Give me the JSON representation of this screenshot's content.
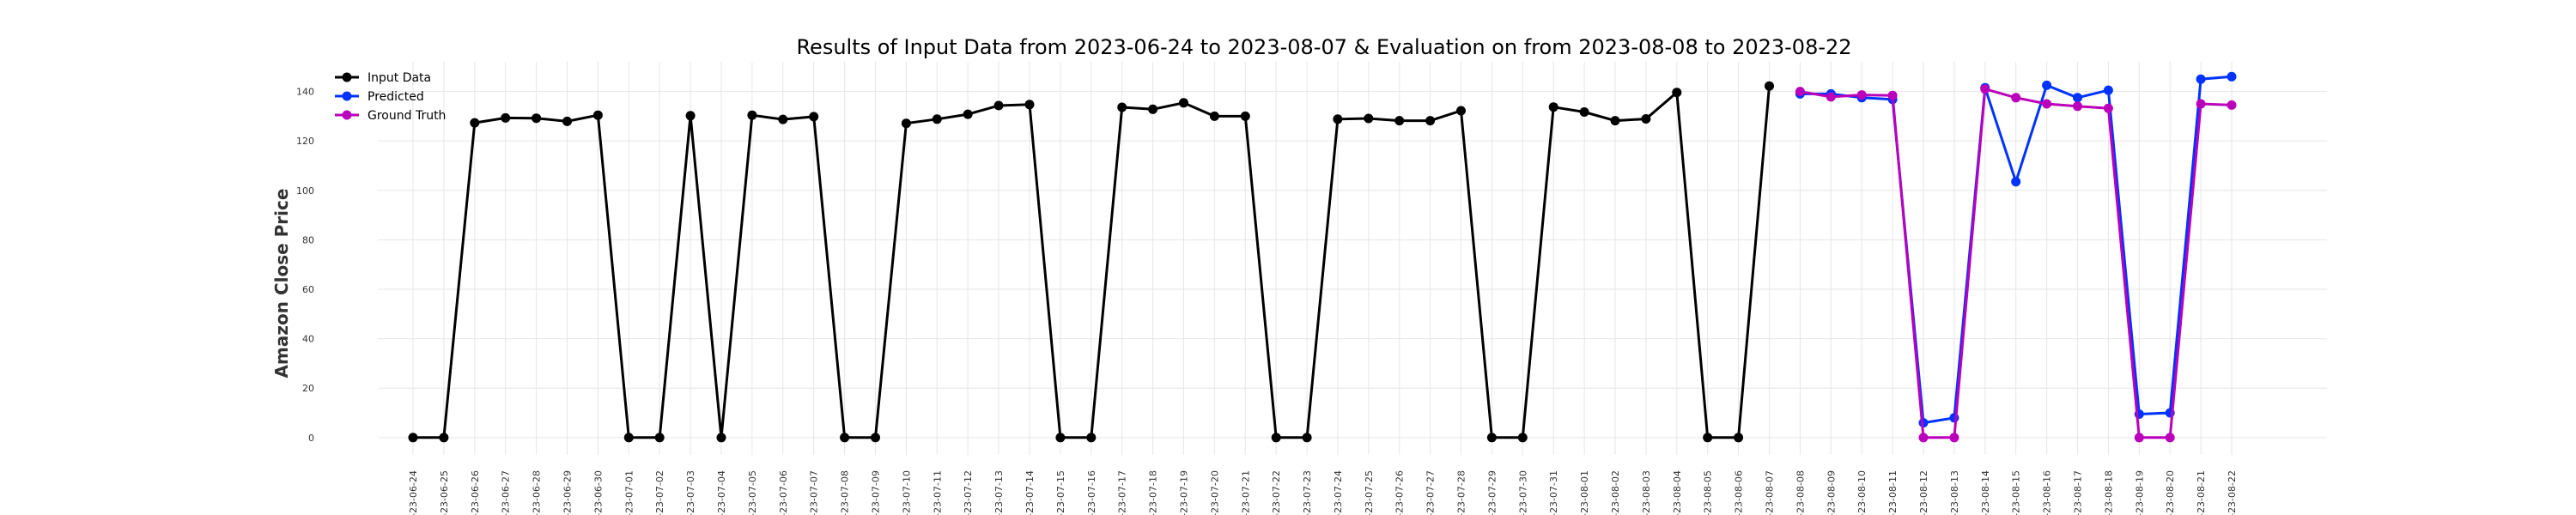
{
  "chart_data": {
    "type": "line",
    "title": "Results of Input Data from 2023-06-24 to 2023-08-07 & Evaluation on from 2023-08-08 to 2023-08-22",
    "xlabel": "",
    "ylabel": "Amazon Close Price",
    "ylim": [
      -7,
      152
    ],
    "yticks": [
      0,
      20,
      40,
      60,
      80,
      100,
      120,
      140
    ],
    "grid": true,
    "legend_position": "top-left",
    "x_tick_labels": [
      "-23-06-24",
      "-23-06-25",
      "-23-06-26",
      "-23-06-27",
      "-23-06-28",
      "-23-06-29",
      "-23-06-30",
      "-23-07-01",
      "-23-07-02",
      "-23-07-03",
      "-23-07-04",
      "-23-07-05",
      "-23-07-06",
      "-23-07-07",
      "-23-07-08",
      "-23-07-09",
      "-23-07-10",
      "-23-07-11",
      "-23-07-12",
      "-23-07-13",
      "-23-07-14",
      "-23-07-15",
      "-23-07-16",
      "-23-07-17",
      "-23-07-18",
      "-23-07-19",
      "-23-07-20",
      "-23-07-21",
      "-23-07-22",
      "-23-07-23",
      "-23-07-24",
      "-23-07-25",
      "-23-07-26",
      "-23-07-27",
      "-23-07-28",
      "-23-07-29",
      "-23-07-30",
      "-23-07-31",
      "-23-08-01",
      "-23-08-02",
      "-23-08-03",
      "-23-08-04",
      "-23-08-05",
      "-23-08-06",
      "-23-08-07",
      "-23-08-08",
      "-23-08-09",
      "-23-08-10",
      "-23-08-11",
      "-23-08-12",
      "-23-08-13",
      "-23-08-14",
      "-23-08-15",
      "-23-08-16",
      "-23-08-17",
      "-23-08-18",
      "-23-08-19",
      "-23-08-20",
      "-23-08-21",
      "-23-08-22"
    ],
    "series": [
      {
        "name": "Input Data",
        "color": "#000000",
        "x": [
          "2023-06-24",
          "2023-06-25",
          "2023-06-26",
          "2023-06-27",
          "2023-06-28",
          "2023-06-29",
          "2023-06-30",
          "2023-07-01",
          "2023-07-02",
          "2023-07-03",
          "2023-07-04",
          "2023-07-05",
          "2023-07-06",
          "2023-07-07",
          "2023-07-08",
          "2023-07-09",
          "2023-07-10",
          "2023-07-11",
          "2023-07-12",
          "2023-07-13",
          "2023-07-14",
          "2023-07-15",
          "2023-07-16",
          "2023-07-17",
          "2023-07-18",
          "2023-07-19",
          "2023-07-20",
          "2023-07-21",
          "2023-07-22",
          "2023-07-23",
          "2023-07-24",
          "2023-07-25",
          "2023-07-26",
          "2023-07-27",
          "2023-07-28",
          "2023-07-29",
          "2023-07-30",
          "2023-07-31",
          "2023-08-01",
          "2023-08-02",
          "2023-08-03",
          "2023-08-04",
          "2023-08-05",
          "2023-08-06",
          "2023-08-07"
        ],
        "values": [
          0,
          0,
          127.3,
          129.3,
          129.2,
          127.9,
          130.4,
          0,
          0,
          130.2,
          0,
          130.4,
          128.7,
          129.8,
          0,
          0,
          127.1,
          128.8,
          130.8,
          134.3,
          134.7,
          0,
          0,
          133.6,
          132.8,
          135.4,
          130.0,
          130.0,
          0,
          0,
          128.8,
          129.1,
          128.2,
          128.2,
          132.2,
          0,
          0,
          133.7,
          131.7,
          128.2,
          128.9,
          139.6,
          0,
          0,
          142.2
        ]
      },
      {
        "name": "Predicted",
        "color": "#0033ff",
        "x": [
          "2023-08-08",
          "2023-08-09",
          "2023-08-10",
          "2023-08-11",
          "2023-08-12",
          "2023-08-13",
          "2023-08-14",
          "2023-08-15",
          "2023-08-16",
          "2023-08-17",
          "2023-08-18",
          "2023-08-19",
          "2023-08-20",
          "2023-08-21",
          "2023-08-22"
        ],
        "values": [
          139.0,
          139.0,
          137.5,
          136.8,
          6.0,
          8.0,
          141.5,
          103.5,
          142.5,
          137.5,
          140.5,
          9.5,
          10.0,
          145.0,
          146.0
        ]
      },
      {
        "name": "Ground Truth",
        "color": "#bb00bb",
        "x": [
          "2023-08-08",
          "2023-08-09",
          "2023-08-10",
          "2023-08-11",
          "2023-08-12",
          "2023-08-13",
          "2023-08-14",
          "2023-08-15",
          "2023-08-16",
          "2023-08-17",
          "2023-08-18",
          "2023-08-19",
          "2023-08-20",
          "2023-08-21",
          "2023-08-22"
        ],
        "values": [
          140.0,
          137.8,
          138.6,
          138.4,
          0,
          0,
          141.0,
          137.5,
          135.0,
          134.0,
          133.2,
          0,
          0,
          135.0,
          134.5
        ]
      }
    ]
  }
}
